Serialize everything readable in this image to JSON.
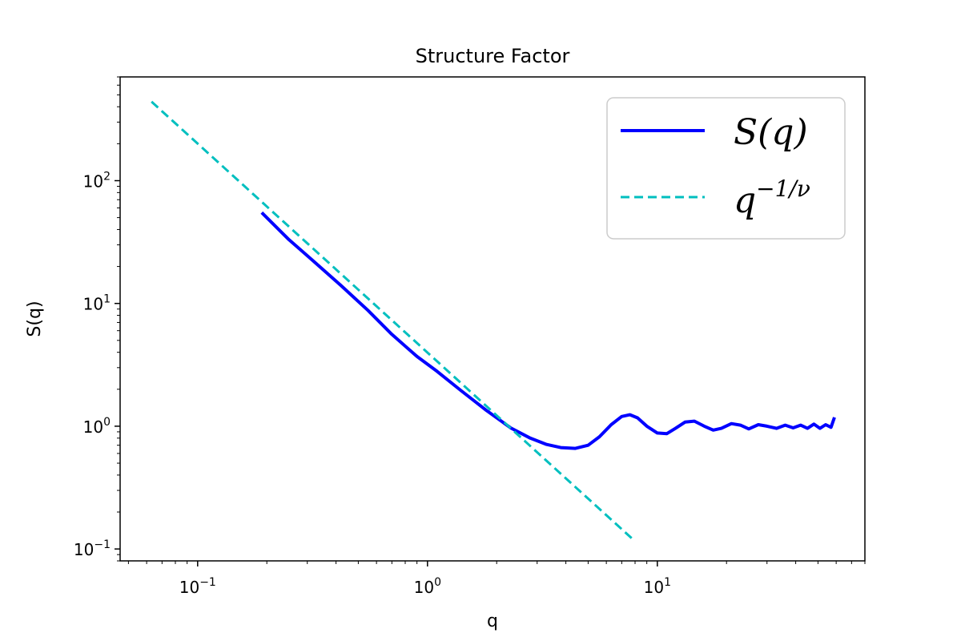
{
  "chart_data": {
    "type": "line",
    "title": "Structure Factor",
    "xlabel": "q",
    "ylabel": "S(q)",
    "xscale": "log",
    "yscale": "log",
    "xlim": [
      0.046,
      80
    ],
    "ylim": [
      0.08,
      700
    ],
    "grid": false,
    "legend_position": "top-right",
    "x_ticks": [
      {
        "value": 0.1,
        "label": "10^-1"
      },
      {
        "value": 1,
        "label": "10^0"
      },
      {
        "value": 10,
        "label": "10^1"
      }
    ],
    "y_ticks": [
      {
        "value": 0.1,
        "label": "10^-1"
      },
      {
        "value": 1,
        "label": "10^0"
      },
      {
        "value": 10,
        "label": "10^1"
      },
      {
        "value": 100,
        "label": "10^2"
      }
    ],
    "series": [
      {
        "name": "S(q)",
        "color": "#0000ff",
        "style": "solid",
        "x": [
          0.19,
          0.25,
          0.32,
          0.42,
          0.55,
          0.7,
          0.9,
          1.1,
          1.4,
          1.8,
          2.3,
          2.8,
          3.3,
          3.8,
          4.4,
          5.0,
          5.6,
          6.3,
          7.0,
          7.6,
          8.2,
          9.0,
          10.0,
          11.0,
          12.0,
          13.2,
          14.5,
          16.0,
          17.5,
          19.0,
          21.0,
          23.0,
          25.0,
          27.5,
          30.0,
          33.0,
          36.0,
          39.0,
          42.0,
          45.0,
          48.0,
          51.0,
          54.0,
          57.0,
          59.0
        ],
        "y": [
          55,
          33,
          22,
          14,
          8.8,
          5.6,
          3.7,
          2.8,
          1.95,
          1.35,
          0.97,
          0.8,
          0.71,
          0.67,
          0.66,
          0.7,
          0.82,
          1.03,
          1.2,
          1.24,
          1.17,
          1.0,
          0.88,
          0.87,
          0.96,
          1.08,
          1.1,
          1.0,
          0.93,
          0.96,
          1.05,
          1.02,
          0.95,
          1.03,
          1.0,
          0.96,
          1.02,
          0.97,
          1.02,
          0.96,
          1.04,
          0.96,
          1.03,
          0.98,
          1.18
        ]
      },
      {
        "name": "q^{-1/ν}",
        "color": "#00bfbf",
        "style": "dashed",
        "x": [
          0.063,
          7.9
        ],
        "y": [
          440,
          0.118
        ]
      }
    ]
  },
  "legend": {
    "entries": [
      {
        "text": "S(q)"
      },
      {
        "base": "q",
        "sup": "−1/ν"
      }
    ]
  }
}
